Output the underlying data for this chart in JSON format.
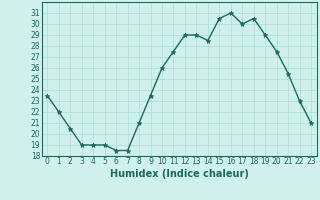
{
  "x": [
    0,
    1,
    2,
    3,
    4,
    5,
    6,
    7,
    8,
    9,
    10,
    11,
    12,
    13,
    14,
    15,
    16,
    17,
    18,
    19,
    20,
    21,
    22,
    23
  ],
  "y": [
    23.5,
    22,
    20.5,
    19,
    19,
    19,
    18.5,
    18.5,
    21,
    23.5,
    26,
    27.5,
    29,
    29,
    28.5,
    30.5,
    31,
    30,
    30.5,
    29,
    27.5,
    25.5,
    23,
    21
  ],
  "line_color": "#1a6b5a",
  "marker": "*",
  "marker_size": 3.5,
  "bg_color": "#cff0eb",
  "grid_color": "#aaddd6",
  "xlabel": "Humidex (Indice chaleur)",
  "ylim": [
    18,
    32
  ],
  "xlim": [
    -0.5,
    23.5
  ],
  "yticks": [
    18,
    19,
    20,
    21,
    22,
    23,
    24,
    25,
    26,
    27,
    28,
    29,
    30,
    31
  ],
  "xticks": [
    0,
    1,
    2,
    3,
    4,
    5,
    6,
    7,
    8,
    9,
    10,
    11,
    12,
    13,
    14,
    15,
    16,
    17,
    18,
    19,
    20,
    21,
    22,
    23
  ],
  "tick_fontsize": 5.5,
  "label_fontsize": 7.0
}
